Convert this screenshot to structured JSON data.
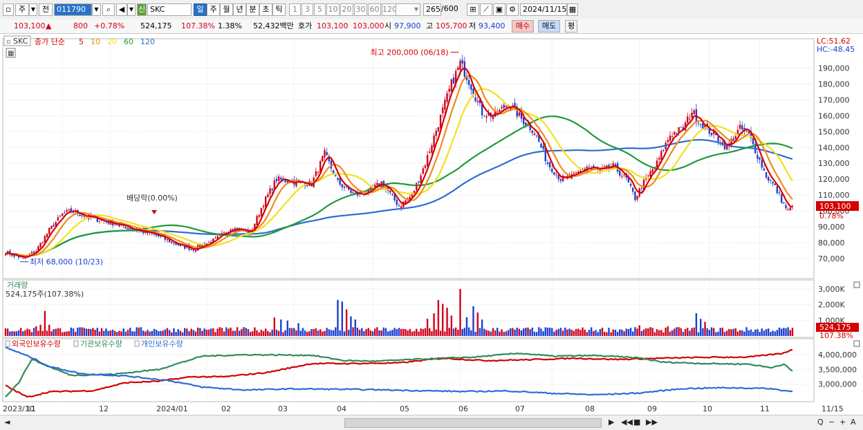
{
  "toolbar": {
    "market": "주",
    "prev_label": "전",
    "code": "011790",
    "sin_badge": "신",
    "stock_name": "SKC",
    "period_buttons": [
      "일",
      "주",
      "월",
      "년",
      "분",
      "초",
      "틱"
    ],
    "active_period": "일",
    "interval_buttons": [
      "1",
      "3",
      "5",
      "10",
      "20",
      "30",
      "60",
      "120"
    ],
    "count": "265",
    "total": "/600",
    "date": "2024/11/15"
  },
  "quote": {
    "price": "103,100",
    "change_arrow": "▲",
    "change": "800",
    "change_pct": "+0.78%",
    "volume": "524,175",
    "volume_pct": "107.38%",
    "turnover": "1.38%",
    "amount": "52,432백만",
    "hoga_label": "호가",
    "ask": "103,100",
    "bid": "103,000",
    "open_label": "시",
    "open": "97,900",
    "high_label": "고",
    "high": "105,700",
    "low_label": "저",
    "low": "93,400",
    "buy_label": "매수",
    "sell_label": "매도",
    "eval_label": "평"
  },
  "colors": {
    "up": "#d0021b",
    "down": "#1b3fd0",
    "ma5": "#d40000",
    "ma10": "#f08a1c",
    "ma20": "#f2e11c",
    "ma60": "#1e9a3a",
    "ma120": "#2c6bd6",
    "foreign": "#d40000",
    "institution": "#2e8b57",
    "individual": "#2c6bd6"
  },
  "chart_data": [
    {
      "type": "candlestick",
      "title": "SKC",
      "legend": {
        "prefix": "종가 단순",
        "periods": [
          "5",
          "10",
          "20",
          "60",
          "120"
        ]
      },
      "right_labels": {
        "lc": "LC:51.62",
        "hc": "HC:-48.45"
      },
      "x_ticks": [
        "2023/10",
        "11",
        "12",
        "2024/01",
        "02",
        "03",
        "04",
        "05",
        "06",
        "07",
        "08",
        "09",
        "10",
        "11",
        "11/15"
      ],
      "ylim": [
        60000,
        205000
      ],
      "y_ticks": [
        70000,
        80000,
        90000,
        100000,
        110000,
        120000,
        130000,
        140000,
        150000,
        160000,
        170000,
        180000,
        190000
      ],
      "y_tick_labels": [
        "70,000",
        "80,000",
        "90,000",
        "100,000",
        "110,000",
        "120,000",
        "130,000",
        "140,000",
        "150,000",
        "160,000",
        "170,000",
        "180,000",
        "190,000"
      ],
      "last_price_label": "103,100",
      "last_pct_label": "0.78%",
      "annotations": {
        "high": {
          "label": "최고 200,000 (06/18)",
          "value": 200000
        },
        "low": {
          "label": "최저 68,000 (10/23)",
          "value": 68000
        },
        "dividend": {
          "label": "배당락(0.00%)"
        }
      },
      "close_path": [
        [
          0,
          74000
        ],
        [
          8,
          70000
        ],
        [
          14,
          75000
        ],
        [
          20,
          88000
        ],
        [
          26,
          98000
        ],
        [
          30,
          100000
        ],
        [
          38,
          96000
        ],
        [
          50,
          92000
        ],
        [
          60,
          88000
        ],
        [
          70,
          84000
        ],
        [
          80,
          78000
        ],
        [
          86,
          76000
        ],
        [
          96,
          82000
        ],
        [
          104,
          90000
        ],
        [
          112,
          86000
        ],
        [
          118,
          105000
        ],
        [
          124,
          120000
        ],
        [
          134,
          118000
        ],
        [
          140,
          117000
        ],
        [
          146,
          136000
        ],
        [
          152,
          118000
        ],
        [
          160,
          110000
        ],
        [
          166,
          112000
        ],
        [
          172,
          118000
        ],
        [
          180,
          103000
        ],
        [
          186,
          110000
        ],
        [
          192,
          130000
        ],
        [
          198,
          155000
        ],
        [
          204,
          180000
        ],
        [
          208,
          193000
        ],
        [
          212,
          182000
        ],
        [
          218,
          162000
        ],
        [
          224,
          160000
        ],
        [
          230,
          168000
        ],
        [
          236,
          158000
        ],
        [
          242,
          150000
        ],
        [
          248,
          130000
        ],
        [
          254,
          120000
        ],
        [
          260,
          122000
        ],
        [
          266,
          128000
        ],
        [
          272,
          125000
        ],
        [
          278,
          128000
        ],
        [
          284,
          120000
        ],
        [
          288,
          108000
        ],
        [
          292,
          118000
        ],
        [
          298,
          130000
        ],
        [
          304,
          148000
        ],
        [
          310,
          152000
        ],
        [
          314,
          163000
        ],
        [
          318,
          155000
        ],
        [
          324,
          148000
        ],
        [
          330,
          140000
        ],
        [
          336,
          152000
        ],
        [
          340,
          148000
        ],
        [
          344,
          135000
        ],
        [
          348,
          122000
        ],
        [
          352,
          115000
        ],
        [
          356,
          104000
        ],
        [
          358,
          100000
        ],
        [
          360,
          103100
        ]
      ]
    },
    {
      "type": "bar",
      "title": "거래량",
      "value_label": "524,175주(107.38%)",
      "ylim": [
        0,
        3400000
      ],
      "y_ticks": [
        1000000,
        2000000,
        3000000
      ],
      "y_tick_labels": [
        "1,000K",
        "2,000K",
        "3,000K"
      ],
      "last_value_label": "524,175",
      "last_pct_label": "107.38%",
      "base_volume": 380000,
      "spikes": [
        [
          14,
          620000
        ],
        [
          16,
          720000
        ],
        [
          18,
          1600000
        ],
        [
          20,
          720000
        ],
        [
          44,
          500000
        ],
        [
          46,
          480000
        ],
        [
          123,
          1180000
        ],
        [
          126,
          1050000
        ],
        [
          129,
          980000
        ],
        [
          134,
          820000
        ],
        [
          152,
          2300000
        ],
        [
          154,
          2200000
        ],
        [
          156,
          1700000
        ],
        [
          158,
          1250000
        ],
        [
          160,
          1050000
        ],
        [
          193,
          1100000
        ],
        [
          196,
          1450000
        ],
        [
          198,
          2300000
        ],
        [
          200,
          2050000
        ],
        [
          202,
          1800000
        ],
        [
          204,
          1300000
        ],
        [
          208,
          3000000
        ],
        [
          211,
          1200000
        ],
        [
          214,
          1900000
        ],
        [
          216,
          1500000
        ],
        [
          218,
          1050000
        ],
        [
          290,
          680000
        ],
        [
          303,
          620000
        ],
        [
          316,
          1450000
        ],
        [
          318,
          1100000
        ],
        [
          320,
          900000
        ],
        [
          356,
          520000
        ],
        [
          358,
          560000
        ],
        [
          360,
          524175
        ]
      ]
    },
    {
      "type": "line",
      "title": "외국인보유수량",
      "legend": [
        "외국인보유수량",
        "기관보유수량",
        "개인보유수량"
      ],
      "ylim": [
        2500000,
        4400000
      ],
      "y_ticks": [
        3000000,
        3500000,
        4000000
      ],
      "y_tick_labels": [
        "3,000,000",
        "3,500,000",
        "4,000,000"
      ],
      "series": [
        {
          "name": "외국인보유수량",
          "color": "#d40000",
          "points": [
            [
              0,
              2950000
            ],
            [
              10,
              2560000
            ],
            [
              20,
              2740000
            ],
            [
              40,
              2780000
            ],
            [
              55,
              3050000
            ],
            [
              70,
              3100000
            ],
            [
              85,
              3250000
            ],
            [
              100,
              3250000
            ],
            [
              120,
              3400000
            ],
            [
              140,
              3700000
            ],
            [
              160,
              3700000
            ],
            [
              180,
              3720000
            ],
            [
              200,
              3880000
            ],
            [
              220,
              3800000
            ],
            [
              240,
              3830000
            ],
            [
              260,
              3880000
            ],
            [
              280,
              3840000
            ],
            [
              300,
              3880000
            ],
            [
              320,
              3910000
            ],
            [
              340,
              3920000
            ],
            [
              355,
              4040000
            ],
            [
              360,
              4170000
            ]
          ]
        },
        {
          "name": "기관보유수량",
          "color": "#2e8b57",
          "points": [
            [
              0,
              2580000
            ],
            [
              6,
              3050000
            ],
            [
              12,
              3850000
            ],
            [
              18,
              3650000
            ],
            [
              30,
              3300000
            ],
            [
              50,
              3340000
            ],
            [
              70,
              3500000
            ],
            [
              90,
              3950000
            ],
            [
              110,
              4000000
            ],
            [
              140,
              3980000
            ],
            [
              155,
              3800000
            ],
            [
              170,
              3780000
            ],
            [
              190,
              3850000
            ],
            [
              215,
              3920000
            ],
            [
              235,
              4050000
            ],
            [
              250,
              3950000
            ],
            [
              270,
              3970000
            ],
            [
              290,
              3890000
            ],
            [
              300,
              3750000
            ],
            [
              320,
              3700000
            ],
            [
              340,
              3680000
            ],
            [
              350,
              3560000
            ],
            [
              356,
              3680000
            ],
            [
              360,
              3430000
            ]
          ]
        },
        {
          "name": "개인보유수량",
          "color": "#2c6bd6",
          "points": [
            [
              0,
              4250000
            ],
            [
              12,
              3900000
            ],
            [
              20,
              3600000
            ],
            [
              35,
              3350000
            ],
            [
              55,
              3280000
            ],
            [
              75,
              3120000
            ],
            [
              90,
              2900000
            ],
            [
              110,
              2800000
            ],
            [
              130,
              2840000
            ],
            [
              150,
              2830000
            ],
            [
              170,
              2810000
            ],
            [
              190,
              2780000
            ],
            [
              210,
              2750000
            ],
            [
              230,
              2770000
            ],
            [
              250,
              2690000
            ],
            [
              270,
              2640000
            ],
            [
              290,
              2700000
            ],
            [
              310,
              2850000
            ],
            [
              330,
              2880000
            ],
            [
              350,
              2850000
            ],
            [
              356,
              2780000
            ],
            [
              360,
              2760000
            ]
          ]
        }
      ]
    }
  ],
  "scroll": {
    "left_arrow": "◄",
    "right_controls": [
      "▶",
      "◀◀",
      "■",
      "▶▶"
    ],
    "right_icons": [
      "Q",
      "−",
      "+",
      "A"
    ]
  }
}
